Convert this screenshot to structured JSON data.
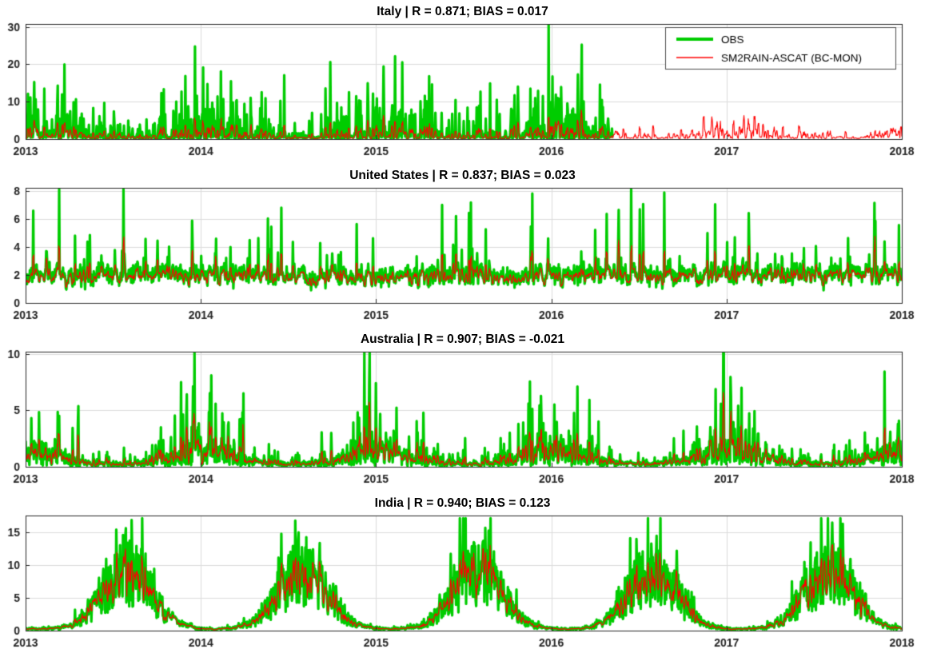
{
  "legend": {
    "position": "top-right",
    "panel": "Italy",
    "entries": [
      {
        "label": "OBS",
        "color": "#00cc00",
        "line_width": 4
      },
      {
        "label": "SM2RAIN-ASCAT (BC-MON)",
        "color": "#ff0000",
        "line_width": 1.3
      }
    ]
  },
  "style": {
    "background": "#ffffff",
    "grid_color": "#dcdcdc",
    "axis_color": "#262626",
    "title_color": "#000000",
    "samples_per_series": 1827,
    "x_unit": "year (daily values)"
  },
  "chart_data": [
    {
      "type": "line",
      "title": "Italy | R = 0.871; BIAS = 0.017",
      "region": "Italy",
      "R": 0.871,
      "BIAS": 0.017,
      "x_range": [
        2013,
        2018
      ],
      "x_ticks": [
        "2013",
        "2014",
        "2015",
        "2016",
        "2017",
        "2018"
      ],
      "ylim": [
        0,
        30.8
      ],
      "yticks": [
        0,
        10,
        20,
        30
      ],
      "grid": true,
      "legend_visible": true,
      "series": [
        {
          "name": "OBS",
          "color": "#00cc00",
          "line_width": 3.2,
          "x_end": 2016.35,
          "description": "thick green daily observed rainfall; record ends spring 2016"
        },
        {
          "name": "SM2RAIN-ASCAT (BC-MON)",
          "color": "#ff0000",
          "line_width": 1.1,
          "x_end": 2018,
          "description": "thin red satellite rainfall estimate; full record, lower amplitude spikes up to ~20"
        }
      ],
      "pattern": {
        "kind": "spiky",
        "seed": 101,
        "wetProb": 0.46,
        "amp": 4.2,
        "seasonDepth": 0.35,
        "seasonPhase": 0.58,
        "cap": 30.8,
        "satScale": 0.52
      }
    },
    {
      "type": "line",
      "title": "United States | R = 0.837; BIAS = 0.023",
      "region": "United States",
      "R": 0.837,
      "BIAS": 0.023,
      "x_range": [
        2013,
        2018
      ],
      "x_ticks": [
        "2013",
        "2014",
        "2015",
        "2016",
        "2017",
        "2018"
      ],
      "ylim": [
        0,
        8.2
      ],
      "yticks": [
        0,
        2,
        4,
        6,
        8
      ],
      "grid": true,
      "legend_visible": false,
      "series": [
        {
          "name": "OBS",
          "color": "#00cc00",
          "line_width": 3.2,
          "x_end": 2018,
          "description": "fluctuates around 2 with occasional peaks to ~7-8"
        },
        {
          "name": "SM2RAIN-ASCAT (BC-MON)",
          "color": "#ff0000",
          "line_width": 1.1,
          "x_end": 2018,
          "description": "tracks OBS closely inside the green band"
        }
      ],
      "pattern": {
        "kind": "band",
        "seed": 202,
        "base": 2.0,
        "noise": 1.05,
        "jitter": 0.9,
        "wetProb": 0.1,
        "amp": 1.6,
        "floor": 0.3,
        "cap": 8.1,
        "satScale": 0.93
      }
    },
    {
      "type": "line",
      "title": "Australia | R = 0.907; BIAS = -0.021",
      "region": "Australia",
      "R": 0.907,
      "BIAS": -0.021,
      "x_range": [
        2013,
        2018
      ],
      "x_ticks": [
        "2013",
        "2014",
        "2015",
        "2016",
        "2017",
        "2018"
      ],
      "ylim": [
        0,
        10.2
      ],
      "yticks": [
        0,
        5,
        10
      ],
      "grid": true,
      "legend_visible": false,
      "series": [
        {
          "name": "OBS",
          "color": "#00cc00",
          "line_width": 3.2,
          "x_end": 2018,
          "description": "seasonal peaks (~5-10) near each year start, low mid-year"
        },
        {
          "name": "SM2RAIN-ASCAT (BC-MON)",
          "color": "#ff0000",
          "line_width": 1.1,
          "x_end": 2018,
          "description": "tracks OBS seasonal cycle"
        }
      ],
      "pattern": {
        "kind": "seasonal",
        "seed": 303,
        "base": 0.35,
        "amp": 2.0,
        "center": 0.02,
        "width": 0.16,
        "mean": 0.55,
        "vari": 0.5,
        "wetProb": 0.3,
        "spike": 2.6,
        "cap": 10.1,
        "satScale": 0.88
      }
    },
    {
      "type": "line",
      "title": "India | R = 0.940; BIAS = 0.123",
      "region": "India",
      "R": 0.94,
      "BIAS": 0.123,
      "x_range": [
        2013,
        2018
      ],
      "x_ticks": [
        "2013",
        "2014",
        "2015",
        "2016",
        "2017",
        "2018"
      ],
      "ylim": [
        0,
        17.6
      ],
      "yticks": [
        0,
        5,
        10,
        15
      ],
      "grid": true,
      "legend_visible": false,
      "series": [
        {
          "name": "OBS",
          "color": "#00cc00",
          "line_width": 3.2,
          "x_end": 2018,
          "description": "strong monsoon peaks mid-year up to ~15-17, near zero in winter"
        },
        {
          "name": "SM2RAIN-ASCAT (BC-MON)",
          "color": "#ff0000",
          "line_width": 1.1,
          "x_end": 2018,
          "description": "tracks monsoon envelope through middle of green band"
        }
      ],
      "pattern": {
        "kind": "seasonal",
        "seed": 404,
        "base": 0.3,
        "amp": 11.5,
        "center": 0.58,
        "width": 0.14,
        "mean": 0.75,
        "vari": 0.45,
        "wetProb": 0.25,
        "spike": 3.2,
        "cap": 17.2,
        "satScale": 0.93
      }
    }
  ]
}
